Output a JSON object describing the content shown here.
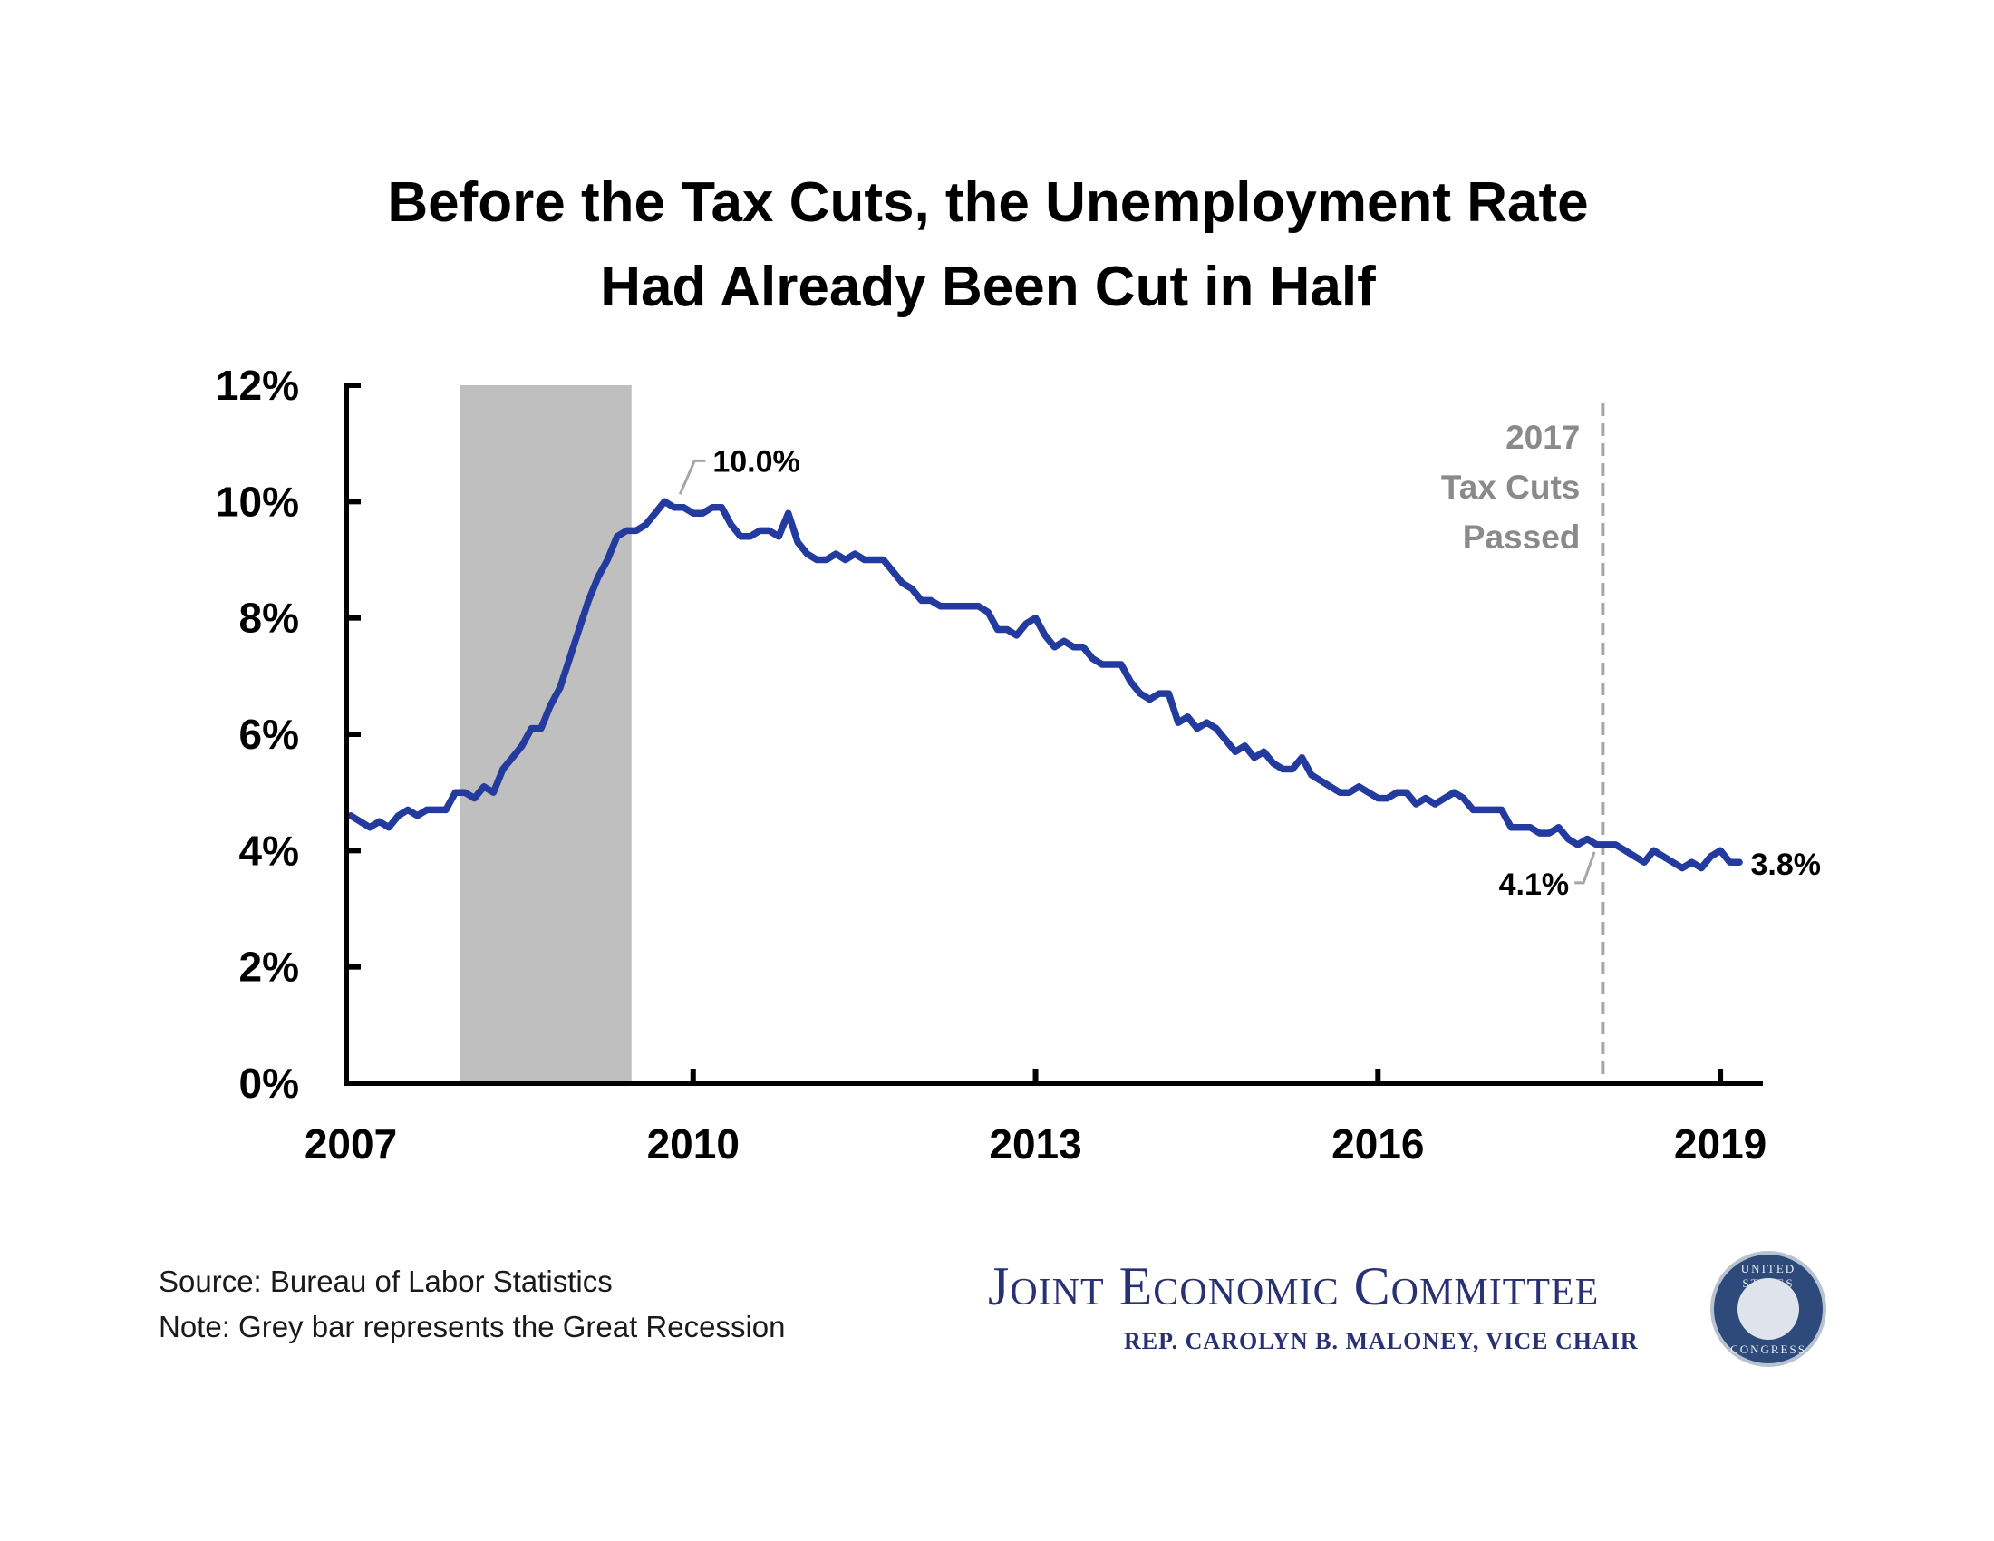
{
  "chart_data": {
    "type": "line",
    "title": [
      "Before the Tax Cuts, the Unemployment Rate",
      "Had Already Been Cut in Half"
    ],
    "ylim": [
      0,
      12
    ],
    "xlim": [
      2007,
      2019.25
    ],
    "y_ticks": [
      {
        "value": 0,
        "label": "0%"
      },
      {
        "value": 2,
        "label": "2%"
      },
      {
        "value": 4,
        "label": "4%"
      },
      {
        "value": 6,
        "label": "6%"
      },
      {
        "value": 8,
        "label": "8%"
      },
      {
        "value": 10,
        "label": "10%"
      },
      {
        "value": 12,
        "label": "12%"
      }
    ],
    "x_ticks": [
      {
        "value": 2007,
        "label": "2007"
      },
      {
        "value": 2010,
        "label": "2010"
      },
      {
        "value": 2013,
        "label": "2013"
      },
      {
        "value": 2016,
        "label": "2016"
      },
      {
        "value": 2019,
        "label": "2019"
      }
    ],
    "shaded_period": {
      "start": 2007.96,
      "end": 2009.46,
      "color": "#bfbfbf"
    },
    "event_line": {
      "x": 2017.97,
      "label": [
        "2017",
        "Tax Cuts",
        "Passed"
      ],
      "color": "#a6a6a6"
    },
    "series": [
      {
        "color": "#233a9e",
        "x_start": 2007.0,
        "x_step": 0.0833333,
        "values": [
          4.6,
          4.5,
          4.4,
          4.5,
          4.4,
          4.6,
          4.7,
          4.6,
          4.7,
          4.7,
          4.7,
          5.0,
          5.0,
          4.9,
          5.1,
          5.0,
          5.4,
          5.6,
          5.8,
          6.1,
          6.1,
          6.5,
          6.8,
          7.3,
          7.8,
          8.3,
          8.7,
          9.0,
          9.4,
          9.5,
          9.5,
          9.6,
          9.8,
          10.0,
          9.9,
          9.9,
          9.8,
          9.8,
          9.9,
          9.9,
          9.6,
          9.4,
          9.4,
          9.5,
          9.5,
          9.4,
          9.8,
          9.3,
          9.1,
          9.0,
          9.0,
          9.1,
          9.0,
          9.1,
          9.0,
          9.0,
          9.0,
          8.8,
          8.6,
          8.5,
          8.3,
          8.3,
          8.2,
          8.2,
          8.2,
          8.2,
          8.2,
          8.1,
          7.8,
          7.8,
          7.7,
          7.9,
          8.0,
          7.7,
          7.5,
          7.6,
          7.5,
          7.5,
          7.3,
          7.2,
          7.2,
          7.2,
          6.9,
          6.7,
          6.6,
          6.7,
          6.7,
          6.2,
          6.3,
          6.1,
          6.2,
          6.1,
          5.9,
          5.7,
          5.8,
          5.6,
          5.7,
          5.5,
          5.4,
          5.4,
          5.6,
          5.3,
          5.2,
          5.1,
          5.0,
          5.0,
          5.1,
          5.0,
          4.9,
          4.9,
          5.0,
          5.0,
          4.8,
          4.9,
          4.8,
          4.9,
          5.0,
          4.9,
          4.7,
          4.7,
          4.7,
          4.7,
          4.4,
          4.4,
          4.4,
          4.3,
          4.3,
          4.4,
          4.2,
          4.1,
          4.2,
          4.1,
          4.1,
          4.1,
          4.0,
          3.9,
          3.8,
          4.0,
          3.9,
          3.8,
          3.7,
          3.8,
          3.7,
          3.9,
          4.0,
          3.8,
          3.8
        ]
      }
    ],
    "annotations": [
      {
        "label": "10.0%",
        "x": 2009.79,
        "y": 10.0
      },
      {
        "label": "4.1%",
        "x": 2017.96,
        "y": 4.1
      },
      {
        "label": "3.8%",
        "x": 2019.17,
        "y": 3.8
      }
    ]
  },
  "footnotes": {
    "source": "Source: Bureau of Labor Statistics",
    "note": "Note: Grey bar represents the Great Recession"
  },
  "logo": {
    "name": "Joint Economic Committee",
    "subtitle": "REP. CAROLYN B. MALONEY, VICE CHAIR",
    "seal_top": "UNITED STATES",
    "seal_bottom": "CONGRESS"
  }
}
